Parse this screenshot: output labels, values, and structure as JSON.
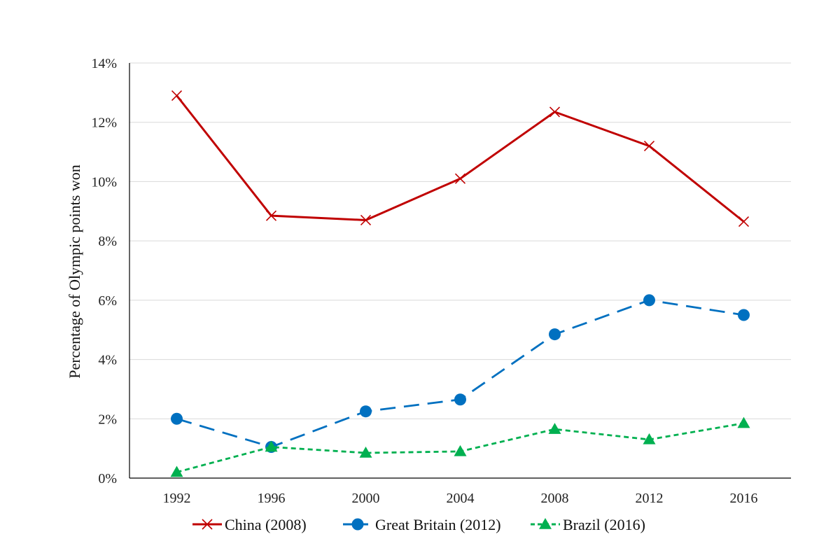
{
  "chart_data": {
    "type": "line",
    "title": "",
    "xlabel": "",
    "ylabel": "Percentage of Olympic points won",
    "categories": [
      "1992",
      "1996",
      "2000",
      "2004",
      "2008",
      "2012",
      "2016"
    ],
    "ylim": [
      0,
      14
    ],
    "y_ticks": [
      0,
      2,
      4,
      6,
      8,
      10,
      12,
      14
    ],
    "y_tick_labels": [
      "0%",
      "2%",
      "4%",
      "6%",
      "8%",
      "10%",
      "12%",
      "14%"
    ],
    "grid": "horizontal",
    "legend_position": "bottom",
    "series": [
      {
        "name": "China (2008)",
        "values": [
          12.9,
          8.85,
          8.7,
          10.1,
          12.35,
          11.2,
          8.65
        ],
        "color": "#c00000",
        "line_style": "solid",
        "marker": "x"
      },
      {
        "name": "Great Britain (2012)",
        "values": [
          2.0,
          1.05,
          2.25,
          2.65,
          4.85,
          6.0,
          5.5
        ],
        "color": "#0070c0",
        "line_style": "long-dash",
        "marker": "circle"
      },
      {
        "name": "Brazil (2016)",
        "values": [
          0.2,
          1.05,
          0.85,
          0.9,
          1.65,
          1.3,
          1.85
        ],
        "color": "#00b050",
        "line_style": "short-dash",
        "marker": "triangle"
      }
    ]
  }
}
